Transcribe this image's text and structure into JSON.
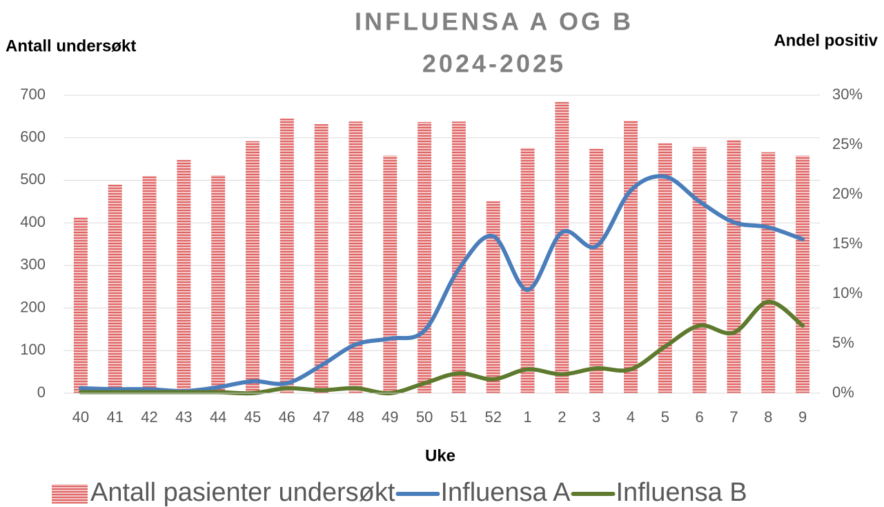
{
  "chart_data": {
    "type": "bar-line",
    "title": [
      "INFLUENSA A OG B",
      "2024-2025"
    ],
    "y_label": "Antall undersøkt",
    "y2_label": "Andel positiv",
    "x_label": "Uke",
    "categories": [
      "40",
      "41",
      "42",
      "43",
      "44",
      "45",
      "46",
      "47",
      "48",
      "49",
      "50",
      "51",
      "52",
      "1",
      "2",
      "3",
      "4",
      "5",
      "6",
      "7",
      "8",
      "9"
    ],
    "series": [
      {
        "name": "Antall pasienter undersøkt",
        "type": "bar",
        "color": "#e06666",
        "values": [
          413,
          490,
          510,
          548,
          512,
          592,
          645,
          632,
          638,
          558,
          637,
          638,
          451,
          576,
          684,
          574,
          640,
          587,
          578,
          595,
          566,
          558
        ]
      },
      {
        "name": "Influensa A",
        "type": "line",
        "axis": "y2",
        "color": "#4a7ebb",
        "values": [
          0.5,
          0.4,
          0.4,
          0.2,
          0.6,
          1.2,
          1.0,
          2.8,
          4.9,
          5.5,
          6.3,
          12.5,
          15.8,
          10.4,
          16.2,
          14.8,
          20.4,
          21.8,
          19.3,
          17.2,
          16.7,
          15.5
        ]
      },
      {
        "name": "Influensa B",
        "type": "line",
        "axis": "y2",
        "color": "#5e7a2e",
        "values": [
          0.1,
          0.1,
          0.1,
          0.1,
          0.1,
          0,
          0.5,
          0.3,
          0.5,
          0,
          1.0,
          2.0,
          1.4,
          2.4,
          1.9,
          2.5,
          2.4,
          4.7,
          6.8,
          6.1,
          9.2,
          6.8
        ]
      }
    ],
    "ylim": [
      0,
      700
    ],
    "yticks": [
      0,
      100,
      200,
      300,
      400,
      500,
      600,
      700
    ],
    "y2lim": [
      0,
      30
    ],
    "y2ticks": [
      {
        "value": 0,
        "label": "0%"
      },
      {
        "value": 5,
        "label": "5%"
      },
      {
        "value": 10,
        "label": "10%"
      },
      {
        "value": 15,
        "label": "15%"
      },
      {
        "value": 20,
        "label": "20%"
      },
      {
        "value": 25,
        "label": "25%"
      },
      {
        "value": 30,
        "label": "30%"
      }
    ],
    "grid": true
  }
}
